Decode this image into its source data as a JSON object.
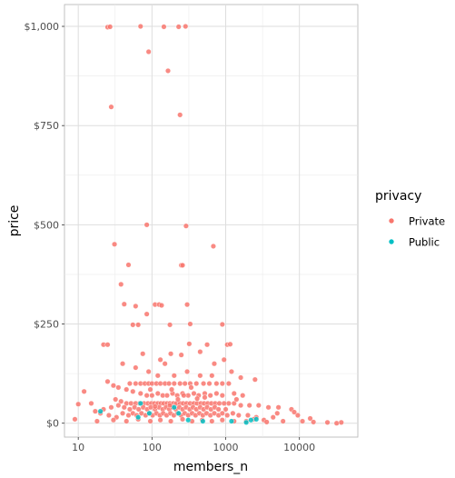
{
  "chart_data": {
    "type": "scatter",
    "xlabel": "members_n",
    "ylabel": "price",
    "x_scale": "log10",
    "xlim": [
      6.5,
      62000
    ],
    "ylim": [
      -35,
      1055
    ],
    "x_ticks": [
      {
        "value": 10,
        "label": "10"
      },
      {
        "value": 100,
        "label": "100"
      },
      {
        "value": 1000,
        "label": "1000"
      },
      {
        "value": 10000,
        "label": "10000"
      }
    ],
    "y_ticks": [
      {
        "value": 0,
        "label": "$0"
      },
      {
        "value": 250,
        "label": "$250"
      },
      {
        "value": 500,
        "label": "$500"
      },
      {
        "value": 750,
        "label": "$750"
      },
      {
        "value": 1000,
        "label": "$1,000"
      }
    ],
    "grid": true,
    "legend": {
      "title": "privacy",
      "position": "right",
      "entries": [
        {
          "label": "Private",
          "color": "#F8766D"
        },
        {
          "label": "Public",
          "color": "#00BFC4"
        }
      ]
    },
    "series": [
      {
        "name": "Private",
        "color": "#F8766D",
        "points": [
          [
            25,
            998
          ],
          [
            27,
            999
          ],
          [
            70,
            1000
          ],
          [
            145,
            999
          ],
          [
            230,
            999
          ],
          [
            285,
            1000
          ],
          [
            90,
            936
          ],
          [
            165,
            888
          ],
          [
            240,
            777
          ],
          [
            28,
            797
          ],
          [
            85,
            500
          ],
          [
            290,
            497
          ],
          [
            680,
            446
          ],
          [
            31,
            451
          ],
          [
            38,
            350
          ],
          [
            48,
            399
          ],
          [
            250,
            398
          ],
          [
            260,
            398
          ],
          [
            110,
            299
          ],
          [
            125,
            299
          ],
          [
            135,
            297
          ],
          [
            300,
            299
          ],
          [
            60,
            295
          ],
          [
            42,
            300
          ],
          [
            65,
            248
          ],
          [
            175,
            248
          ],
          [
            330,
            250
          ],
          [
            900,
            249
          ],
          [
            85,
            275
          ],
          [
            22,
            198
          ],
          [
            25,
            198
          ],
          [
            1050,
            198
          ],
          [
            1150,
            199
          ],
          [
            560,
            198
          ],
          [
            55,
            248
          ],
          [
            180,
            175
          ],
          [
            250,
            172
          ],
          [
            75,
            175
          ],
          [
            130,
            160
          ],
          [
            320,
            200
          ],
          [
            450,
            180
          ],
          [
            700,
            150
          ],
          [
            950,
            160
          ],
          [
            40,
            150
          ],
          [
            60,
            140
          ],
          [
            90,
            130
          ],
          [
            150,
            150
          ],
          [
            120,
            120
          ],
          [
            200,
            120
          ],
          [
            300,
            130
          ],
          [
            450,
            120
          ],
          [
            650,
            120
          ],
          [
            1200,
            130
          ],
          [
            1600,
            115
          ],
          [
            2500,
            110
          ],
          [
            50,
            100
          ],
          [
            60,
            100
          ],
          [
            70,
            100
          ],
          [
            80,
            100
          ],
          [
            90,
            100
          ],
          [
            100,
            100
          ],
          [
            115,
            100
          ],
          [
            130,
            100
          ],
          [
            150,
            100
          ],
          [
            170,
            100
          ],
          [
            200,
            100
          ],
          [
            240,
            100
          ],
          [
            280,
            100
          ],
          [
            330,
            100
          ],
          [
            400,
            100
          ],
          [
            500,
            100
          ],
          [
            600,
            100
          ],
          [
            750,
            100
          ],
          [
            900,
            100
          ],
          [
            1100,
            100
          ],
          [
            25,
            105
          ],
          [
            30,
            95
          ],
          [
            35,
            90
          ],
          [
            45,
            85
          ],
          [
            55,
            80
          ],
          [
            70,
            75
          ],
          [
            85,
            70
          ],
          [
            100,
            70
          ],
          [
            120,
            75
          ],
          [
            140,
            70
          ],
          [
            160,
            70
          ],
          [
            190,
            75
          ],
          [
            220,
            70
          ],
          [
            260,
            75
          ],
          [
            310,
            70
          ],
          [
            370,
            75
          ],
          [
            430,
            70
          ],
          [
            520,
            75
          ],
          [
            620,
            70
          ],
          [
            750,
            75
          ],
          [
            900,
            70
          ],
          [
            1300,
            75
          ],
          [
            1700,
            70
          ],
          [
            32,
            60
          ],
          [
            38,
            55
          ],
          [
            45,
            50
          ],
          [
            52,
            50
          ],
          [
            60,
            50
          ],
          [
            68,
            50
          ],
          [
            78,
            50
          ],
          [
            88,
            50
          ],
          [
            98,
            50
          ],
          [
            108,
            50
          ],
          [
            120,
            50
          ],
          [
            132,
            50
          ],
          [
            145,
            50
          ],
          [
            160,
            50
          ],
          [
            175,
            50
          ],
          [
            195,
            50
          ],
          [
            215,
            50
          ],
          [
            240,
            50
          ],
          [
            265,
            50
          ],
          [
            295,
            50
          ],
          [
            330,
            50
          ],
          [
            370,
            50
          ],
          [
            410,
            50
          ],
          [
            460,
            50
          ],
          [
            510,
            50
          ],
          [
            570,
            50
          ],
          [
            640,
            50
          ],
          [
            720,
            50
          ],
          [
            820,
            50
          ],
          [
            950,
            50
          ],
          [
            1100,
            50
          ],
          [
            1300,
            50
          ],
          [
            1600,
            45
          ],
          [
            2100,
            45
          ],
          [
            2800,
            45
          ],
          [
            3800,
            40
          ],
          [
            5200,
            40
          ],
          [
            7800,
            35
          ],
          [
            15,
            50
          ],
          [
            22,
            35
          ],
          [
            28,
            40
          ],
          [
            35,
            45
          ],
          [
            42,
            40
          ],
          [
            50,
            35
          ],
          [
            58,
            40
          ],
          [
            66,
            35
          ],
          [
            76,
            40
          ],
          [
            86,
            35
          ],
          [
            96,
            40
          ],
          [
            110,
            35
          ],
          [
            125,
            40
          ],
          [
            140,
            35
          ],
          [
            155,
            40
          ],
          [
            172,
            35
          ],
          [
            190,
            40
          ],
          [
            210,
            35
          ],
          [
            235,
            40
          ],
          [
            260,
            35
          ],
          [
            290,
            40
          ],
          [
            325,
            35
          ],
          [
            360,
            40
          ],
          [
            400,
            35
          ],
          [
            450,
            40
          ],
          [
            500,
            35
          ],
          [
            560,
            40
          ],
          [
            630,
            35
          ],
          [
            710,
            40
          ],
          [
            800,
            35
          ],
          [
            1000,
            35
          ],
          [
            12,
            80
          ],
          [
            9,
            10
          ],
          [
            10,
            48
          ],
          [
            17,
            30
          ],
          [
            20,
            25
          ],
          [
            26,
            20
          ],
          [
            33,
            15
          ],
          [
            40,
            25
          ],
          [
            48,
            20
          ],
          [
            55,
            25
          ],
          [
            62,
            20
          ],
          [
            72,
            25
          ],
          [
            82,
            20
          ],
          [
            92,
            25
          ],
          [
            102,
            20
          ],
          [
            115,
            25
          ],
          [
            128,
            20
          ],
          [
            142,
            25
          ],
          [
            158,
            20
          ],
          [
            178,
            25
          ],
          [
            198,
            20
          ],
          [
            222,
            25
          ],
          [
            248,
            20
          ],
          [
            278,
            25
          ],
          [
            310,
            20
          ],
          [
            350,
            25
          ],
          [
            390,
            20
          ],
          [
            440,
            25
          ],
          [
            490,
            20
          ],
          [
            550,
            25
          ],
          [
            620,
            20
          ],
          [
            700,
            25
          ],
          [
            800,
            20
          ],
          [
            900,
            25
          ],
          [
            1050,
            20
          ],
          [
            1250,
            25
          ],
          [
            1500,
            20
          ],
          [
            2000,
            20
          ],
          [
            2600,
            15
          ],
          [
            18,
            5
          ],
          [
            30,
            8
          ],
          [
            45,
            5
          ],
          [
            65,
            10
          ],
          [
            95,
            5
          ],
          [
            130,
            8
          ],
          [
            180,
            5
          ],
          [
            260,
            10
          ],
          [
            350,
            5
          ],
          [
            480,
            8
          ],
          [
            650,
            5
          ],
          [
            900,
            8
          ],
          [
            1300,
            5
          ],
          [
            1900,
            5
          ],
          [
            2400,
            10
          ],
          [
            3300,
            8
          ],
          [
            4400,
            15
          ],
          [
            6000,
            5
          ],
          [
            9500,
            20
          ],
          [
            11000,
            5
          ],
          [
            14000,
            12
          ],
          [
            15500,
            3
          ],
          [
            24000,
            2
          ],
          [
            32000,
            0
          ],
          [
            37000,
            2
          ],
          [
            3600,
            3
          ],
          [
            5000,
            25
          ],
          [
            8500,
            28
          ],
          [
            110,
            42
          ],
          [
            175,
            45
          ],
          [
            225,
            60
          ],
          [
            410,
            62
          ],
          [
            520,
            65
          ],
          [
            1400,
            60
          ],
          [
            270,
            70
          ],
          [
            185,
            85
          ],
          [
            95,
            85
          ],
          [
            340,
            90
          ]
        ]
      },
      {
        "name": "Public",
        "color": "#00BFC4",
        "points": [
          [
            20,
            30
          ],
          [
            70,
            50
          ],
          [
            65,
            15
          ],
          [
            200,
            40
          ],
          [
            230,
            25
          ],
          [
            310,
            8
          ],
          [
            490,
            5
          ],
          [
            1200,
            5
          ],
          [
            1900,
            2
          ],
          [
            2200,
            8
          ],
          [
            2600,
            10
          ],
          [
            92,
            25
          ]
        ]
      }
    ]
  }
}
